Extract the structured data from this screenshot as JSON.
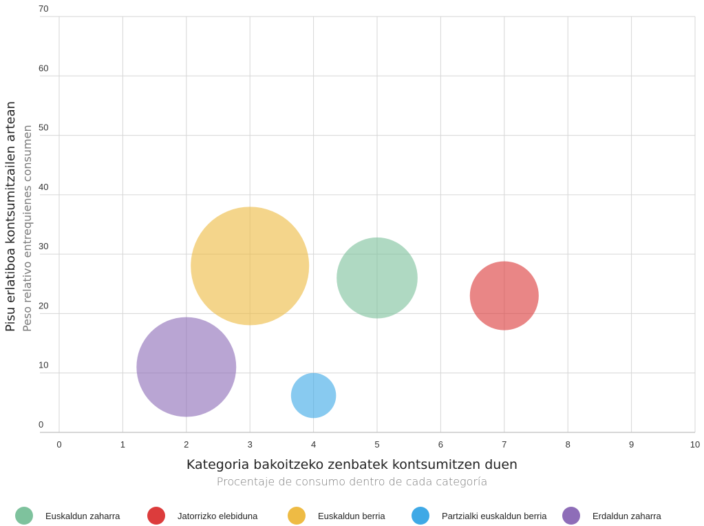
{
  "chart_data": {
    "type": "bubble",
    "xlabel": "Kategoria bakoitzeko zenbatek kontsumitzen duen",
    "xlabel_sub": "Procentaje de consumo dentro de cada categoría",
    "ylabel": "Pisu erlatiboa kontsumitzailen artean",
    "ylabel_sub": "Peso relativo entrequienes consumen",
    "xlim": [
      0,
      10
    ],
    "ylim": [
      0,
      70
    ],
    "x_ticks": [
      "0",
      "1",
      "2",
      "3",
      "4",
      "5",
      "6",
      "7",
      "8",
      "9",
      "10"
    ],
    "y_ticks": [
      "0",
      "10",
      "20",
      "30",
      "40",
      "50",
      "60",
      "70"
    ],
    "grid": true,
    "legend_position": "bottom",
    "series": [
      {
        "name": "Euskaldun zaharra",
        "color": "#7ec29d",
        "x": 5,
        "y": 26,
        "size": 29
      },
      {
        "name": "Jatorrizko elebiduna",
        "color": "#dc3c3c",
        "x": 7,
        "y": 23,
        "size": 21
      },
      {
        "name": "Euskaldun berria",
        "color": "#eebb44",
        "x": 3,
        "y": 28,
        "size": 62
      },
      {
        "name": "Partzialki euskaldun berria",
        "color": "#3fa9e6",
        "x": 4,
        "y": 6.2,
        "size": 9
      },
      {
        "name": "Erdaldun zaharra",
        "color": "#8e6db8",
        "x": 2,
        "y": 11,
        "size": 44
      }
    ]
  }
}
